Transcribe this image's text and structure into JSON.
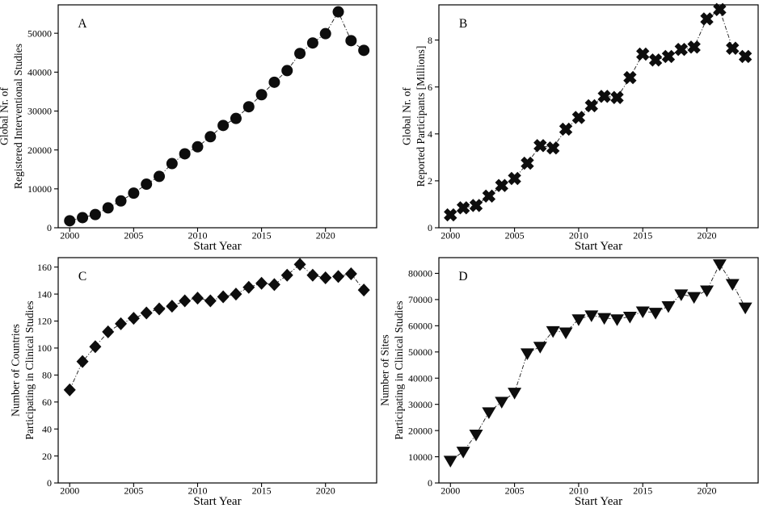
{
  "figure": {
    "background": "#ffffff",
    "marker_color": "#0d0d0d",
    "axis_color": "#000000",
    "connector_style": "dash-dot"
  },
  "chart_data": [
    {
      "panel": "A",
      "type": "line",
      "marker": "circle",
      "xlabel": "Start Year",
      "ylabel_lines": [
        "Global Nr. of",
        "Registered Interventional Studies"
      ],
      "x": [
        2000,
        2001,
        2002,
        2003,
        2004,
        2005,
        2006,
        2007,
        2008,
        2009,
        2010,
        2011,
        2012,
        2013,
        2014,
        2015,
        2016,
        2017,
        2018,
        2019,
        2020,
        2021,
        2022,
        2023
      ],
      "values": [
        1800,
        2600,
        3400,
        5100,
        6900,
        8900,
        11200,
        13200,
        16500,
        19000,
        20800,
        23400,
        26300,
        28100,
        31100,
        34200,
        37400,
        40400,
        44800,
        47500,
        49900,
        55500,
        48100,
        45600
      ],
      "xticks": [
        2000,
        2005,
        2010,
        2015,
        2020
      ],
      "yticks": [
        0,
        10000,
        20000,
        30000,
        40000,
        50000
      ],
      "xlim": [
        1999.1,
        2024.0
      ],
      "ylim": [
        0,
        57300
      ],
      "grid": false,
      "legend": "none"
    },
    {
      "panel": "B",
      "type": "line",
      "marker": "x-thick",
      "xlabel": "Start Year",
      "ylabel_lines": [
        "Global Nr. of",
        "Reported Participants [Millions]"
      ],
      "x": [
        2000,
        2001,
        2002,
        2003,
        2004,
        2005,
        2006,
        2007,
        2008,
        2009,
        2010,
        2011,
        2012,
        2013,
        2014,
        2015,
        2016,
        2017,
        2018,
        2019,
        2020,
        2021,
        2022,
        2023
      ],
      "values": [
        0.55,
        0.85,
        0.95,
        1.35,
        1.8,
        2.1,
        2.75,
        3.5,
        3.4,
        4.2,
        4.7,
        5.2,
        5.6,
        5.55,
        6.4,
        7.4,
        7.15,
        7.3,
        7.6,
        7.7,
        8.9,
        9.3,
        7.65,
        7.3
      ],
      "xticks": [
        2000,
        2005,
        2010,
        2015,
        2020
      ],
      "yticks": [
        0,
        2,
        4,
        6,
        8
      ],
      "xlim": [
        1999.1,
        2024.0
      ],
      "ylim": [
        0,
        9.5
      ],
      "grid": false,
      "legend": "none"
    },
    {
      "panel": "C",
      "type": "line",
      "marker": "diamond",
      "xlabel": "Start Year",
      "ylabel_lines": [
        "Number of Countries",
        "Participating in Clinical Studies"
      ],
      "x": [
        2000,
        2001,
        2002,
        2003,
        2004,
        2005,
        2006,
        2007,
        2008,
        2009,
        2010,
        2011,
        2012,
        2013,
        2014,
        2015,
        2016,
        2017,
        2018,
        2019,
        2020,
        2021,
        2022,
        2023
      ],
      "values": [
        69,
        90,
        101,
        112,
        118,
        122,
        126,
        129,
        131,
        135,
        137,
        135,
        138,
        140,
        145,
        148,
        147,
        154,
        162,
        154,
        152,
        153,
        155,
        143
      ],
      "xticks": [
        2000,
        2005,
        2010,
        2015,
        2020
      ],
      "yticks": [
        0,
        20,
        40,
        60,
        80,
        100,
        120,
        140,
        160
      ],
      "xlim": [
        1999.1,
        2024.0
      ],
      "ylim": [
        0,
        167
      ],
      "grid": false,
      "legend": "none"
    },
    {
      "panel": "D",
      "type": "line",
      "marker": "triangle-down",
      "xlabel": "Start Year",
      "ylabel_lines": [
        "Number of Sites",
        "Participating in Clinical Studies"
      ],
      "x": [
        2000,
        2001,
        2002,
        2003,
        2004,
        2005,
        2006,
        2007,
        2008,
        2009,
        2010,
        2011,
        2012,
        2013,
        2014,
        2015,
        2016,
        2017,
        2018,
        2019,
        2020,
        2021,
        2022,
        2023
      ],
      "values": [
        8500,
        12000,
        18500,
        27000,
        31000,
        34500,
        49500,
        52000,
        58000,
        57500,
        62500,
        64000,
        63000,
        62500,
        63500,
        65500,
        65000,
        67500,
        72000,
        71000,
        73500,
        83500,
        76000,
        67000
      ],
      "xticks": [
        2000,
        2005,
        2010,
        2015,
        2020
      ],
      "yticks": [
        0,
        10000,
        20000,
        30000,
        40000,
        50000,
        60000,
        70000,
        80000
      ],
      "xlim": [
        1999.1,
        2024.0
      ],
      "ylim": [
        0,
        86000
      ],
      "grid": false,
      "legend": "none"
    }
  ]
}
